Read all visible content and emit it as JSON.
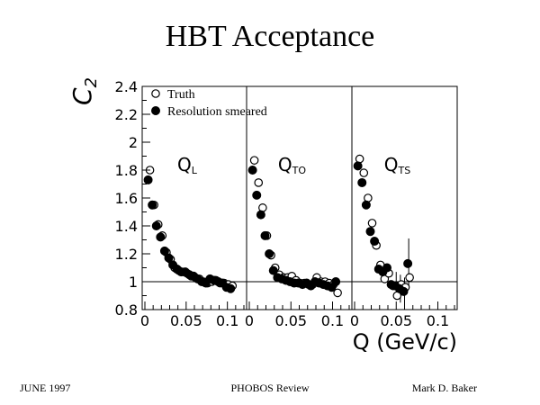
{
  "slide": {
    "title": "HBT Acceptance",
    "footer_left": "JUNE 1997",
    "footer_center": "PHOBOS Review",
    "footer_right": "Mark D. Baker"
  },
  "chart_data": {
    "type": "scatter",
    "ylabel_main": "C",
    "ylabel_sub": "2",
    "xlabel": "Q (GeV/c)",
    "ylim": [
      0.8,
      2.4
    ],
    "xlim": [
      0,
      0.12
    ],
    "y_ticks": [
      "0.8",
      "1",
      "1.2",
      "1.4",
      "1.6",
      "1.8",
      "2",
      "2.2",
      "2.4"
    ],
    "x_ticks": [
      "0",
      "0.05",
      "0.1"
    ],
    "legend": {
      "placement": "top-left",
      "truth": "Truth",
      "smeared": "Resolution smeared"
    },
    "colors": {
      "truth": "#000000",
      "smeared": "#000000"
    },
    "panels": [
      {
        "label_main": "Q",
        "label_sub": "L",
        "truth": {
          "x": [
            0.005,
            0.01,
            0.015,
            0.02,
            0.025,
            0.03,
            0.035,
            0.04,
            0.045,
            0.05,
            0.055,
            0.06,
            0.065,
            0.07,
            0.075,
            0.08,
            0.085,
            0.09,
            0.095,
            0.1,
            0.105
          ],
          "y": [
            1.8,
            1.55,
            1.41,
            1.33,
            1.21,
            1.16,
            1.1,
            1.08,
            1.07,
            1.06,
            1.04,
            1.03,
            1.02,
            1.0,
            0.99,
            1.0,
            1.01,
            0.99,
            0.99,
            0.98,
            0.97
          ]
        },
        "smeared": {
          "x": [
            0.005,
            0.01,
            0.015,
            0.02,
            0.025,
            0.03,
            0.035,
            0.04,
            0.045,
            0.05,
            0.055,
            0.06,
            0.065,
            0.07,
            0.075,
            0.08,
            0.085,
            0.09,
            0.095,
            0.1,
            0.105
          ],
          "y": [
            1.73,
            1.55,
            1.4,
            1.32,
            1.22,
            1.17,
            1.12,
            1.09,
            1.07,
            1.07,
            1.05,
            1.04,
            1.02,
            1.0,
            0.99,
            1.02,
            1.01,
            1.0,
            0.99,
            0.96,
            0.95
          ]
        }
      },
      {
        "label_main": "Q",
        "label_sub": "TO",
        "truth": {
          "x": [
            0.005,
            0.01,
            0.015,
            0.02,
            0.025,
            0.03,
            0.035,
            0.04,
            0.045,
            0.05,
            0.055,
            0.06,
            0.065,
            0.07,
            0.075,
            0.08,
            0.085,
            0.09,
            0.095,
            0.1,
            0.105
          ],
          "y": [
            1.87,
            1.71,
            1.53,
            1.33,
            1.19,
            1.1,
            1.05,
            1.03,
            1.03,
            1.04,
            1.01,
            0.99,
            0.99,
            0.98,
            0.98,
            1.03,
            1.0,
            1.0,
            0.99,
            0.98,
            0.92
          ]
        },
        "smeared": {
          "x": [
            0.005,
            0.01,
            0.015,
            0.02,
            0.025,
            0.03,
            0.035,
            0.04,
            0.045,
            0.05,
            0.055,
            0.06,
            0.065,
            0.07,
            0.075,
            0.08,
            0.085,
            0.09,
            0.095,
            0.1,
            0.105
          ],
          "y": [
            1.8,
            1.62,
            1.48,
            1.33,
            1.2,
            1.08,
            1.03,
            1.02,
            1.01,
            1.0,
            0.99,
            0.99,
            0.98,
            0.99,
            0.97,
            1.0,
            0.99,
            0.98,
            0.97,
            0.96,
            1.0
          ]
        }
      },
      {
        "label_main": "Q",
        "label_sub": "TS",
        "truth": {
          "x": [
            0.005,
            0.01,
            0.015,
            0.02,
            0.025,
            0.03,
            0.035,
            0.04,
            0.045,
            0.05,
            0.055,
            0.06,
            0.065
          ],
          "y": [
            1.88,
            1.78,
            1.6,
            1.42,
            1.26,
            1.12,
            1.02,
            1.06,
            0.97,
            0.9,
            0.98,
            0.96,
            1.03
          ]
        },
        "smeared": {
          "x": [
            0.005,
            0.01,
            0.015,
            0.02,
            0.025,
            0.03,
            0.035,
            0.04,
            0.045,
            0.05,
            0.055,
            0.06,
            0.065
          ],
          "y": [
            1.83,
            1.71,
            1.55,
            1.36,
            1.29,
            1.09,
            1.07,
            1.1,
            0.98,
            0.97,
            0.95,
            0.93,
            1.13
          ]
        }
      }
    ]
  }
}
